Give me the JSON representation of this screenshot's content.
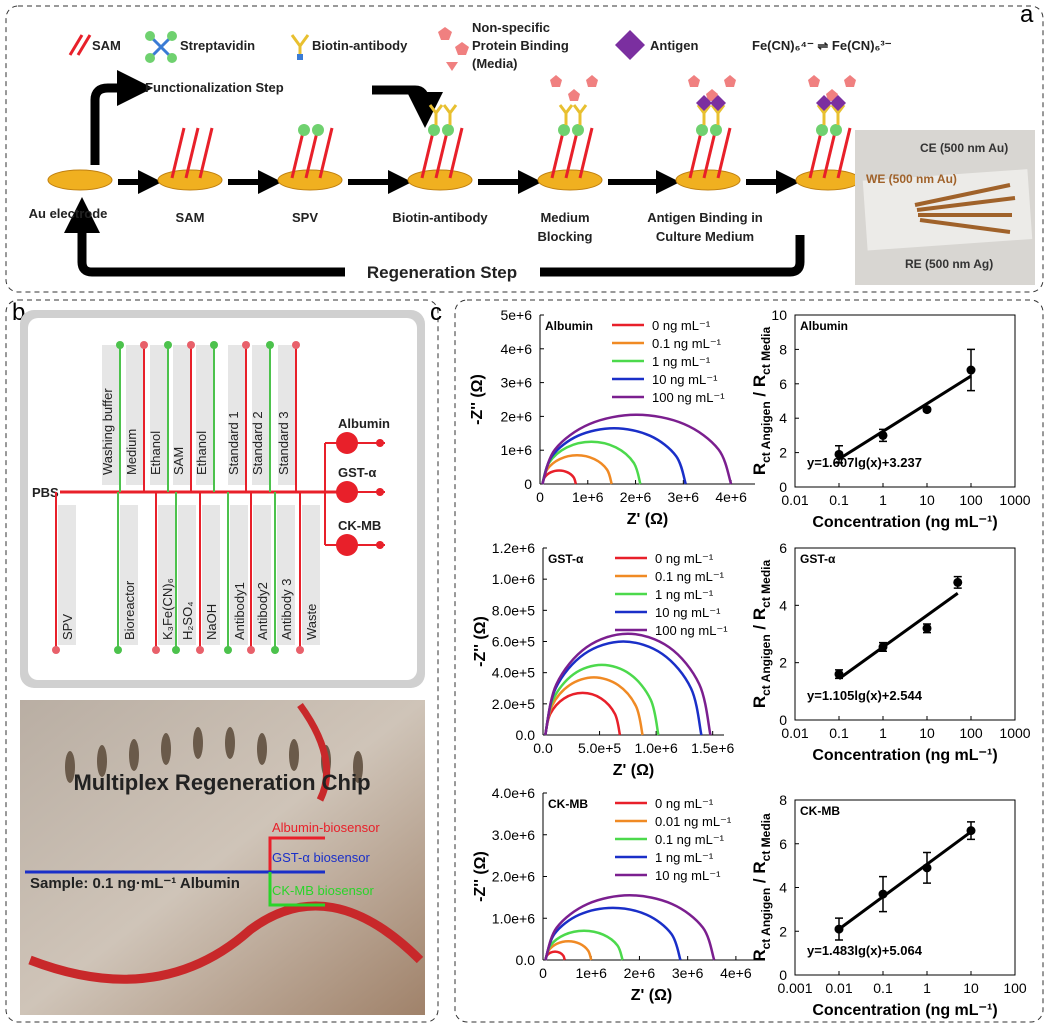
{
  "panel_a": {
    "label": "a",
    "legend": {
      "sam": "SAM",
      "streptavidin": "Streptavidin",
      "biotin_antibody": "Biotin-antibody",
      "nonspecific": [
        "Non-specific",
        "Protein Binding",
        "(Media)"
      ],
      "antigen": "Antigen",
      "redox": "Fe(CN)₆⁴⁻ ⇌ Fe(CN)₆³⁻"
    },
    "functionalization": "Functionalization Step",
    "steps": [
      [
        "Au electrode"
      ],
      [
        "SAM"
      ],
      [
        "SPV"
      ],
      [
        "Biotin-antibody"
      ],
      [
        "Medium",
        "Blocking"
      ],
      [
        "Antigen Binding in",
        "Culture Medium"
      ]
    ],
    "regeneration": "Regeneration Step",
    "chip": {
      "ce": "CE (500 nm Au)",
      "we": "WE (500 nm Au)",
      "re": "RE (500 nm Ag)"
    }
  },
  "panel_b": {
    "label": "b",
    "inlet": "PBS",
    "top_channels": [
      "Washing buffer",
      "Medium",
      "Ethanol",
      "SAM",
      "Ethanol",
      "Standard 1",
      "Standard 2",
      "Standard 3"
    ],
    "bottom_channels": [
      "SPV",
      "Bioreactor",
      "K₃Fe(CN)₆",
      "H₂SO₄",
      "NaOH",
      "Antibody1",
      "Antibody2",
      "Antibody 3",
      "Waste"
    ],
    "outputs": [
      "Albumin",
      "GST-α",
      "CK-MB"
    ],
    "photo": {
      "title": "Multiplex Regeneration Chip",
      "sensors": [
        "Albumin-biosensor",
        "GST-α biosensor",
        "CK-MB biosensor"
      ],
      "sample": "Sample: 0.1 ng·mL⁻¹ Albumin"
    }
  },
  "panel_c": {
    "label": "c"
  },
  "chart_data": [
    {
      "type": "line",
      "title": "Albumin",
      "x_label": "Z' (Ω)",
      "y_label": "-Z'' (Ω)",
      "xlim": [
        0,
        4500000
      ],
      "ylim": [
        0,
        5000000
      ],
      "xticks": [
        0,
        {
          "value": 1000000,
          "label": "1e+6"
        },
        {
          "value": 2000000,
          "label": "2e+6"
        },
        {
          "value": 3000000,
          "label": "3e+6"
        },
        {
          "value": 4000000,
          "label": "4e+6"
        }
      ],
      "yticks": [
        0,
        {
          "value": 1000000,
          "label": "1e+6"
        },
        {
          "value": 2000000,
          "label": "2e+6"
        },
        {
          "value": 3000000,
          "label": "3e+6"
        },
        {
          "value": 4000000,
          "label": "4e+6"
        },
        {
          "value": 5000000,
          "label": "5e+6"
        }
      ],
      "series": [
        {
          "name": "0 ng mL⁻¹",
          "color": "#e8202a",
          "x": [
            50000,
            97000,
            225000,
            400000,
            575000,
            703000,
            750000
          ],
          "values": [
            0,
            200000,
            346000,
            400000,
            346000,
            200000,
            0
          ]
        },
        {
          "name": "0.1 ng mL⁻¹",
          "color": "#f08a24",
          "x": [
            50000,
            147000,
            413000,
            775000,
            1138000,
            1403000,
            1500000
          ],
          "values": [
            0,
            425000,
            736000,
            850000,
            736000,
            425000,
            0
          ]
        },
        {
          "name": "1 ng mL⁻¹",
          "color": "#4cd94c",
          "x": [
            50000,
            187000,
            563000,
            1075000,
            1588000,
            1963000,
            2100000
          ],
          "values": [
            0,
            625000,
            1083000,
            1250000,
            1083000,
            625000,
            0
          ]
        },
        {
          "name": "10 ng mL⁻¹",
          "color": "#1a2fc8",
          "x": [
            50000,
            251000,
            800000,
            1550000,
            2300000,
            2849000,
            3050000
          ],
          "values": [
            0,
            825000,
            1429000,
            1650000,
            1429000,
            825000,
            0
          ]
        },
        {
          "name": "100 ng mL⁻¹",
          "color": "#7b1f8f",
          "x": [
            50000,
            315000,
            1038000,
            2025000,
            3013000,
            3735000,
            4000000
          ],
          "values": [
            0,
            1025000,
            1775000,
            2050000,
            1775000,
            1025000,
            0
          ]
        }
      ]
    },
    {
      "type": "scatter",
      "title": "Albumin",
      "x_label": "Concentration (ng mL⁻¹)",
      "y_label": {
        "main1": "R",
        "sub1": "ct Angigen",
        "main2": " / R",
        "sub2": "ct Media"
      },
      "log_x": true,
      "xlim": [
        0.01,
        1000
      ],
      "ylim": [
        0,
        10
      ],
      "xticks": [
        0.01,
        0.1,
        1,
        10,
        100,
        1000
      ],
      "yticks": [
        0,
        2,
        4,
        6,
        8,
        10
      ],
      "x": [
        0.1,
        1,
        10,
        100
      ],
      "values": [
        1.9,
        3.0,
        4.5,
        6.8
      ],
      "errors": [
        0.5,
        0.35,
        0.1,
        1.2
      ],
      "color": "#000000",
      "fit": {
        "label": "y=1.607lg(x)+3.237",
        "slope": 1.607,
        "intercept": 3.237,
        "x_range": [
          0.1,
          100
        ]
      }
    },
    {
      "type": "line",
      "title": "GST-α",
      "x_label": "Z' (Ω)",
      "y_label": "-Z'' (Ω)",
      "xlim": [
        0,
        1600000
      ],
      "ylim": [
        0,
        1200000
      ],
      "xticks": [
        {
          "value": 0,
          "label": "0.0"
        },
        {
          "value": 500000,
          "label": "5.0e+5"
        },
        {
          "value": 1000000,
          "label": "1.0e+6"
        },
        {
          "value": 1500000,
          "label": "1.5e+6"
        }
      ],
      "yticks": [
        {
          "value": 0,
          "label": "0.0"
        },
        {
          "value": 200000,
          "label": "2.0e+5"
        },
        {
          "value": 400000,
          "label": "4.0e+5"
        },
        {
          "value": 600000,
          "label": "6.0e+5"
        },
        {
          "value": 800000,
          "label": "8.0e+5"
        },
        {
          "value": 1000000,
          "label": "1.0e+6"
        },
        {
          "value": 1200000,
          "label": "1.2e+6"
        }
      ],
      "series": [
        {
          "name": "0 ng mL⁻¹",
          "color": "#e8202a",
          "x": [
            20000,
            64000,
            185000,
            350000,
            515000,
            636000,
            680000
          ],
          "values": [
            0,
            135000,
            234000,
            270000,
            234000,
            135000,
            0
          ]
        },
        {
          "name": "0.1 ng mL⁻¹",
          "color": "#f08a24",
          "x": [
            20000,
            78000,
            235000,
            450000,
            665000,
            822000,
            880000
          ],
          "values": [
            0,
            185000,
            320000,
            370000,
            320000,
            185000,
            0
          ]
        },
        {
          "name": "1 ng mL⁻¹",
          "color": "#4cd94c",
          "x": [
            20000,
            87000,
            270000,
            520000,
            770000,
            953000,
            1020000
          ],
          "values": [
            0,
            225000,
            390000,
            450000,
            390000,
            225000,
            0
          ]
        },
        {
          "name": "10 ng mL⁻¹",
          "color": "#1a2fc8",
          "x": [
            20000,
            112000,
            365000,
            710000,
            1055000,
            1308000,
            1400000
          ],
          "values": [
            0,
            300000,
            520000,
            600000,
            520000,
            300000,
            0
          ]
        },
        {
          "name": "100 ng mL⁻¹",
          "color": "#7b1f8f",
          "x": [
            20000,
            118000,
            385000,
            750000,
            1115000,
            1382000,
            1480000
          ],
          "values": [
            0,
            325000,
            563000,
            650000,
            563000,
            325000,
            0
          ]
        }
      ]
    },
    {
      "type": "scatter",
      "title": "GST-α",
      "x_label": "Concentration (ng mL⁻¹)",
      "y_label": {
        "main1": "R",
        "sub1": "ct Angigen",
        "main2": " / R",
        "sub2": "ct Media"
      },
      "log_x": true,
      "xlim": [
        0.01,
        1000
      ],
      "ylim": [
        0,
        6
      ],
      "xticks": [
        0.01,
        0.1,
        1,
        10,
        100,
        1000
      ],
      "yticks": [
        0,
        2,
        4,
        6
      ],
      "x": [
        0.1,
        1,
        10,
        50
      ],
      "values": [
        1.6,
        2.55,
        3.2,
        4.8
      ],
      "errors": [
        0.15,
        0.15,
        0.15,
        0.2
      ],
      "color": "#000000",
      "fit": {
        "label": "y=1.105lg(x)+2.544",
        "slope": 1.105,
        "intercept": 2.544,
        "x_range": [
          0.1,
          50
        ]
      }
    },
    {
      "type": "line",
      "title": "CK-MB",
      "x_label": "Z' (Ω)",
      "y_label": "-Z'' (Ω)",
      "xlim": [
        0,
        4500000
      ],
      "ylim": [
        0,
        4000000
      ],
      "xticks": [
        0,
        {
          "value": 1000000,
          "label": "1e+6"
        },
        {
          "value": 2000000,
          "label": "2e+6"
        },
        {
          "value": 3000000,
          "label": "3e+6"
        },
        {
          "value": 4000000,
          "label": "4e+6"
        }
      ],
      "yticks": [
        {
          "value": 0,
          "label": "0.0"
        },
        {
          "value": 1000000,
          "label": "1.0e+6"
        },
        {
          "value": 2000000,
          "label": "2.0e+6"
        },
        {
          "value": 3000000,
          "label": "3.0e+6"
        },
        {
          "value": 4000000,
          "label": "4.0e+6"
        }
      ],
      "series": [
        {
          "name": "0 ng mL⁻¹",
          "color": "#e8202a",
          "x": [
            50000,
            77000,
            150000,
            250000,
            350000,
            423000,
            450000
          ],
          "values": [
            0,
            100000,
            173000,
            200000,
            173000,
            100000,
            0
          ]
        },
        {
          "name": "0.01 ng mL⁻¹",
          "color": "#f08a24",
          "x": [
            50000,
            114000,
            288000,
            525000,
            763000,
            936000,
            1000000
          ],
          "values": [
            0,
            225000,
            390000,
            450000,
            390000,
            225000,
            0
          ]
        },
        {
          "name": "0.1 ng mL⁻¹",
          "color": "#4cd94c",
          "x": [
            50000,
            157000,
            450000,
            850000,
            1250000,
            1543000,
            1650000
          ],
          "values": [
            0,
            350000,
            606000,
            700000,
            606000,
            350000,
            0
          ]
        },
        {
          "name": "1 ng mL⁻¹",
          "color": "#1a2fc8",
          "x": [
            50000,
            238000,
            750000,
            1450000,
            2150000,
            2662000,
            2850000
          ],
          "values": [
            0,
            625000,
            1083000,
            1250000,
            1083000,
            625000,
            0
          ]
        },
        {
          "name": "10 ng mL⁻¹",
          "color": "#7b1f8f",
          "x": [
            50000,
            284000,
            925000,
            1800000,
            2675000,
            3316000,
            3550000
          ],
          "values": [
            0,
            775000,
            1342000,
            1550000,
            1342000,
            775000,
            0
          ]
        }
      ]
    },
    {
      "type": "scatter",
      "title": "CK-MB",
      "x_label": "Concentration (ng mL⁻¹)",
      "y_label": {
        "main1": "R",
        "sub1": "ct Angigen",
        "main2": " / R",
        "sub2": "ct Media"
      },
      "log_x": true,
      "xlim": [
        0.001,
        100
      ],
      "ylim": [
        0,
        8
      ],
      "xticks": [
        0.001,
        0.01,
        0.1,
        1,
        10,
        100
      ],
      "yticks": [
        0,
        2,
        4,
        6,
        8
      ],
      "x": [
        0.01,
        0.1,
        1,
        10
      ],
      "values": [
        2.1,
        3.7,
        4.9,
        6.6
      ],
      "errors": [
        0.5,
        0.8,
        0.7,
        0.4
      ],
      "color": "#000000",
      "fit": {
        "label": "y=1.483lg(x)+5.064",
        "slope": 1.483,
        "intercept": 5.064,
        "x_range": [
          0.01,
          10
        ]
      }
    }
  ]
}
